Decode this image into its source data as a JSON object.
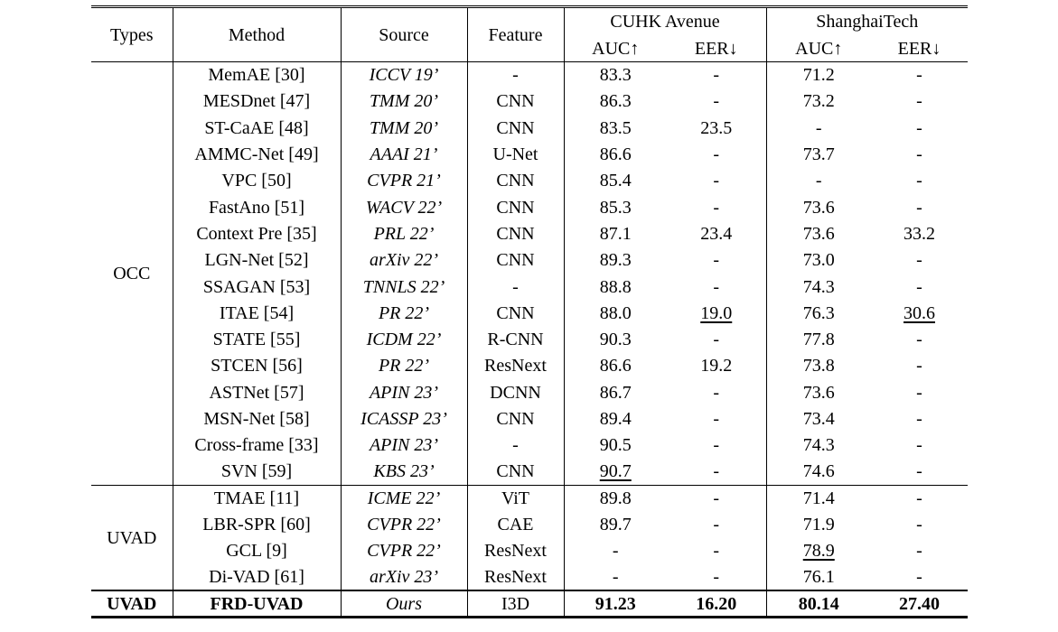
{
  "header": {
    "types": "Types",
    "method": "Method",
    "source": "Source",
    "feature": "Feature",
    "dataset1": "CUHK Avenue",
    "dataset2": "ShanghaiTech",
    "auc": "AUC↑",
    "eer": "EER↓"
  },
  "groups": {
    "occ": "OCC",
    "uvad": "UVAD",
    "final": "UVAD"
  },
  "rows": [
    [
      "MemAE [30]",
      "ICCV 19’",
      "-",
      "83.3",
      "-",
      "71.2",
      "-"
    ],
    [
      "MESDnet [47]",
      "TMM 20’",
      "CNN",
      "86.3",
      "-",
      "73.2",
      "-"
    ],
    [
      "ST-CaAE [48]",
      "TMM 20’",
      "CNN",
      "83.5",
      "23.5",
      "-",
      "-"
    ],
    [
      "AMMC-Net [49]",
      "AAAI 21’",
      "U-Net",
      "86.6",
      "-",
      "73.7",
      "-"
    ],
    [
      "VPC [50]",
      "CVPR 21’",
      "CNN",
      "85.4",
      "-",
      "-",
      "-"
    ],
    [
      "FastAno [51]",
      "WACV 22’",
      "CNN",
      "85.3",
      "-",
      "73.6",
      "-"
    ],
    [
      "Context Pre [35]",
      "PRL 22’",
      "CNN",
      "87.1",
      "23.4",
      "73.6",
      "33.2"
    ],
    [
      "LGN-Net [52]",
      "arXiv 22’",
      "CNN",
      "89.3",
      "-",
      "73.0",
      "-"
    ],
    [
      "SSAGAN [53]",
      "TNNLS 22’",
      "-",
      "88.8",
      "-",
      "74.3",
      "-"
    ],
    [
      "ITAE [54]",
      "PR 22’",
      "CNN",
      "88.0",
      "19.0",
      "76.3",
      "30.6"
    ],
    [
      "STATE [55]",
      "ICDM 22’",
      "R-CNN",
      "90.3",
      "-",
      "77.8",
      "-"
    ],
    [
      "STCEN [56]",
      "PR 22’",
      "ResNext",
      "86.6",
      "19.2",
      "73.8",
      "-"
    ],
    [
      "ASTNet [57]",
      "APIN 23’",
      "DCNN",
      "86.7",
      "-",
      "73.6",
      "-"
    ],
    [
      "MSN-Net [58]",
      "ICASSP 23’",
      "CNN",
      "89.4",
      "-",
      "73.4",
      "-"
    ],
    [
      "Cross-frame [33]",
      "APIN 23’",
      "-",
      "90.5",
      "-",
      "74.3",
      "-"
    ],
    [
      "SVN [59]",
      "KBS 23’",
      "CNN",
      "90.7",
      "-",
      "74.6",
      "-"
    ],
    [
      "TMAE [11]",
      "ICME 22’",
      "ViT",
      "89.8",
      "-",
      "71.4",
      "-"
    ],
    [
      "LBR-SPR [60]",
      "CVPR 22’",
      "CAE",
      "89.7",
      "-",
      "71.9",
      "-"
    ],
    [
      "GCL [9]",
      "CVPR 22’",
      "ResNext",
      "-",
      "-",
      "78.9",
      "-"
    ],
    [
      "Di-VAD [61]",
      "arXiv 23’",
      "ResNext",
      "-",
      "-",
      "76.1",
      "-"
    ]
  ],
  "final_row": [
    "FRD-UVAD",
    "Ours",
    "I3D",
    "91.23",
    "16.20",
    "80.14",
    "27.40"
  ]
}
